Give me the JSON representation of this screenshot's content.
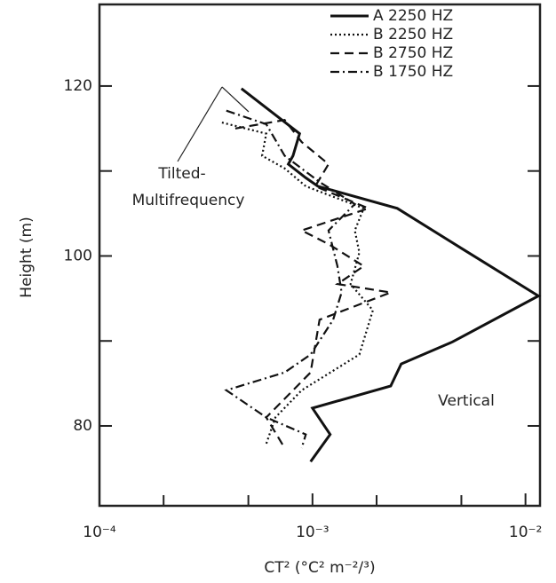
{
  "chart_data": {
    "type": "line",
    "x_label": "CT² (°C² m⁻²/³)",
    "y_label": "Height (m)",
    "xscale": "log",
    "xlim": [
      0.0001,
      0.0117
    ],
    "xticks": [
      {
        "value": 0.0001,
        "label": "10⁻⁴"
      },
      {
        "value": 0.001,
        "label": "10⁻³"
      },
      {
        "value": 0.01,
        "label": "10⁻²"
      }
    ],
    "xminorticks": [
      0.0002,
      0.0005,
      0.002,
      0.005
    ],
    "ylim": [
      70.6,
      129.6
    ],
    "yticks": [
      80,
      100,
      120
    ],
    "yminorticks": [
      90,
      110
    ],
    "legend": "upper right",
    "annotations": [
      "Tilted-",
      "Multifrequency",
      "Vertical"
    ],
    "series": [
      {
        "name": "A 2250 HZ",
        "color": "#111",
        "style": "solid",
        "x": [
          0.000464,
          0.00087,
          0.00081,
          0.00077,
          0.00093,
          0.00106,
          0.0025,
          0.005,
          0.0115,
          0.00455,
          0.00261,
          0.00233,
          0.001,
          0.00121,
          0.00098
        ],
        "values": [
          119.7,
          114.4,
          111.8,
          110.8,
          109.2,
          108.2,
          105.6,
          100.9,
          95.3,
          89.9,
          87.3,
          84.7,
          82.1,
          79.0,
          75.8
        ]
      },
      {
        "name": "B 2250 HZ",
        "color": "#111",
        "style": "dotted",
        "x": [
          0.000376,
          0.000607,
          0.00058,
          0.00074,
          0.00093,
          0.00174,
          0.00158,
          0.00166,
          0.00151,
          0.00192,
          0.00166,
          0.00089,
          0.00067,
          0.000607
        ],
        "values": [
          115.7,
          114.4,
          111.8,
          110.3,
          108.2,
          105.6,
          103.0,
          100.4,
          96.7,
          93.6,
          88.4,
          84.2,
          81.0,
          77.9
        ]
      },
      {
        "name": "B 2750 HZ",
        "color": "#111",
        "style": "dashed",
        "x": [
          0.000434,
          0.00074,
          0.00089,
          0.00119,
          0.00103,
          0.00183,
          0.00089,
          0.00119,
          0.00174,
          0.00131,
          0.00233,
          0.00108,
          0.00098,
          0.000607,
          0.00074
        ],
        "values": [
          115.0,
          116.0,
          113.4,
          110.8,
          108.2,
          105.6,
          103.0,
          101.4,
          98.8,
          96.7,
          95.7,
          92.5,
          86.3,
          81.0,
          77.4
        ]
      },
      {
        "name": "B 1750 HZ",
        "color": "#111",
        "style": "dashdot",
        "x": [
          0.000394,
          0.000607,
          0.00074,
          0.00108,
          0.00158,
          0.00119,
          0.00131,
          0.00137,
          0.00125,
          0.00098,
          0.00074,
          0.000394,
          0.000607,
          0.00093,
          0.00089
        ],
        "values": [
          117.1,
          115.5,
          111.8,
          108.7,
          106.1,
          103.0,
          98.8,
          95.7,
          92.5,
          88.4,
          86.3,
          84.2,
          81.0,
          79.0,
          77.4
        ]
      }
    ]
  }
}
